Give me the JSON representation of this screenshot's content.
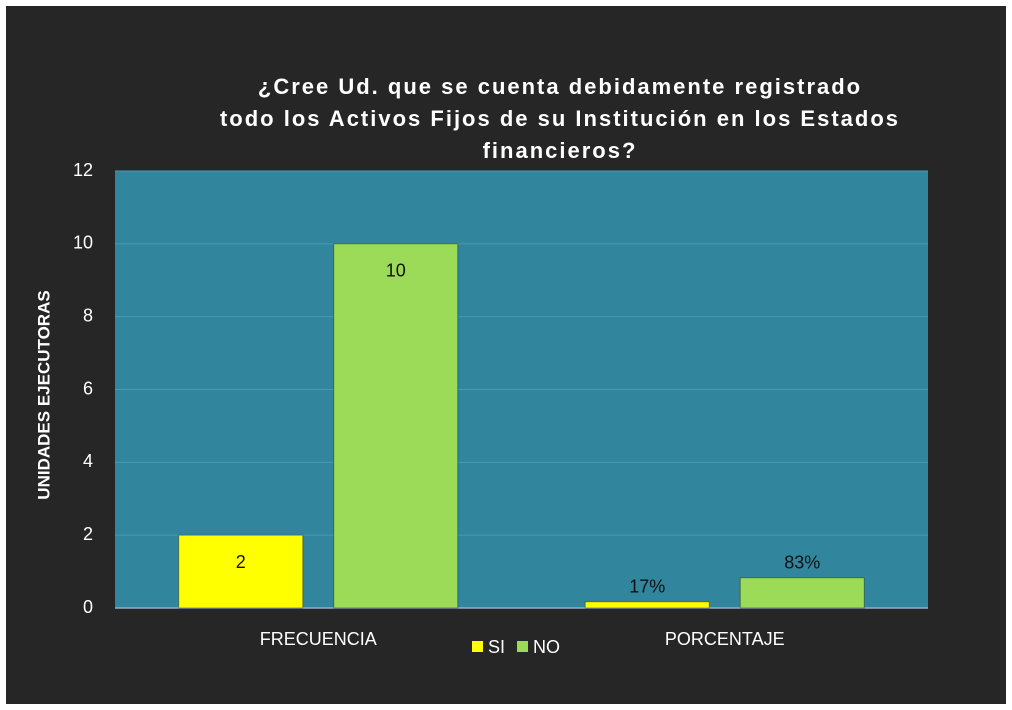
{
  "chart_data": {
    "type": "bar",
    "title": [
      "¿Cree Ud. que se cuenta debidamente registrado",
      "todo los Activos Fijos de su Institución en los Estados",
      "financieros?"
    ],
    "y_label": "UNIDADES EJECUTORAS",
    "categories": [
      "FRECUENCIA",
      "PORCENTAJE"
    ],
    "series": [
      {
        "name": "SI",
        "color": "#ffff00",
        "values": [
          2,
          0.17
        ],
        "value_labels": [
          "2",
          "17%"
        ]
      },
      {
        "name": "NO",
        "color": "#9bdb57",
        "values": [
          10,
          0.83
        ],
        "value_labels": [
          "10",
          "83%"
        ]
      }
    ],
    "ylim": [
      0,
      12
    ],
    "yticks": [
      0,
      2,
      4,
      6,
      8,
      10,
      12
    ],
    "grid": true,
    "legend": "bottom"
  }
}
